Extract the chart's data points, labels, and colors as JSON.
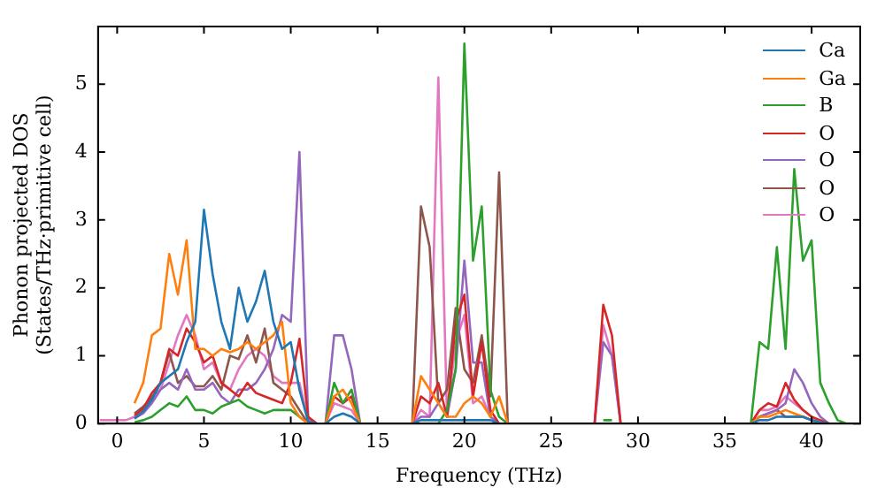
{
  "chart_data": {
    "type": "line",
    "xlabel": "Frequency (THz)",
    "ylabel": "Phonon projected DOS\n(States/THz·primitive cell)",
    "x": [
      -1,
      -0.5,
      0,
      0.5,
      1,
      1.5,
      2,
      2.5,
      3,
      3.5,
      4,
      4.5,
      5,
      5.5,
      6,
      6.5,
      7,
      7.5,
      8,
      8.5,
      9,
      9.5,
      10,
      10.5,
      11,
      11.5,
      12,
      12.5,
      13,
      13.5,
      14,
      14.5,
      15,
      15.5,
      16,
      16.5,
      17,
      17.5,
      18,
      18.5,
      19,
      19.5,
      20,
      20.5,
      21,
      21.5,
      22,
      22.5,
      23,
      23.5,
      24,
      24.5,
      25,
      25.5,
      26,
      26.5,
      27,
      27.5,
      28,
      28.5,
      29,
      29.5,
      30,
      30.5,
      31,
      31.5,
      32,
      32.5,
      33,
      33.5,
      34,
      34.5,
      35,
      35.5,
      36,
      36.5,
      37,
      37.5,
      38,
      38.5,
      39,
      39.5,
      40,
      40.5,
      41,
      41.5,
      42
    ],
    "xlim": [
      -1.1,
      42.8
    ],
    "xticks": [
      0,
      5,
      10,
      15,
      20,
      25,
      30,
      35,
      40
    ],
    "ylim": [
      0,
      5.85
    ],
    "yticks": [
      0,
      1,
      2,
      3,
      4,
      5
    ],
    "legend": "top right",
    "series": [
      {
        "name": "Ca",
        "color": "#1f77b4",
        "values": [
          null,
          null,
          null,
          null,
          0.07,
          0.18,
          0.35,
          0.6,
          0.7,
          0.8,
          1.2,
          1.5,
          3.15,
          2.2,
          1.5,
          1.1,
          2.0,
          1.5,
          1.8,
          2.25,
          1.5,
          1.1,
          1.2,
          0.5,
          0.03,
          0,
          0,
          0.1,
          0.15,
          0.1,
          0,
          null,
          null,
          null,
          null,
          null,
          0,
          0.05,
          0.05,
          0.05,
          0.05,
          0.05,
          0.05,
          0.05,
          0.05,
          0.05,
          0,
          null,
          null,
          null,
          null,
          null,
          null,
          null,
          null,
          null,
          null,
          null,
          null,
          null,
          null,
          null,
          null,
          null,
          null,
          null,
          null,
          null,
          null,
          null,
          null,
          null,
          null,
          null,
          null,
          0,
          0.05,
          0.05,
          0.1,
          0.1,
          0.1,
          0.1,
          0.05,
          0.02,
          0,
          null,
          null
        ]
      },
      {
        "name": "Ga",
        "color": "#ff7f0e",
        "values": [
          null,
          null,
          null,
          null,
          0.3,
          0.6,
          1.3,
          1.4,
          2.5,
          1.9,
          2.7,
          1.1,
          1.1,
          1.0,
          1.1,
          1.05,
          1.1,
          1.2,
          1.1,
          1.2,
          1.3,
          1.5,
          0.3,
          0.1,
          0,
          null,
          0,
          0.4,
          0.5,
          0.3,
          0,
          null,
          null,
          null,
          null,
          null,
          0,
          0.7,
          0.5,
          0.3,
          0.1,
          0.1,
          0.3,
          0.4,
          0.3,
          0.1,
          0.4,
          0,
          null,
          null,
          null,
          null,
          null,
          null,
          null,
          null,
          null,
          null,
          null,
          null,
          null,
          null,
          null,
          null,
          null,
          null,
          null,
          null,
          null,
          null,
          null,
          null,
          null,
          null,
          null,
          0,
          0.1,
          0.1,
          0.15,
          0.2,
          0.15,
          0.1,
          0.05,
          0,
          null,
          null,
          null
        ]
      },
      {
        "name": "B",
        "color": "#2ca02c",
        "values": [
          null,
          null,
          null,
          null,
          0.02,
          0.05,
          0.1,
          0.2,
          0.3,
          0.25,
          0.4,
          0.2,
          0.2,
          0.15,
          0.25,
          0.3,
          0.35,
          0.25,
          0.2,
          0.15,
          0.2,
          0.2,
          0.2,
          0.1,
          0,
          null,
          0,
          0.6,
          0.3,
          0.5,
          0,
          null,
          null,
          null,
          null,
          null,
          null,
          null,
          null,
          0,
          0.2,
          0.8,
          5.6,
          2.4,
          3.2,
          0.5,
          0.1,
          0,
          null,
          null,
          null,
          null,
          null,
          null,
          null,
          null,
          null,
          null,
          0.05,
          0.05,
          null,
          null,
          null,
          null,
          null,
          null,
          null,
          null,
          null,
          null,
          null,
          null,
          null,
          null,
          null,
          0,
          1.2,
          1.1,
          2.6,
          1.1,
          3.75,
          2.4,
          2.7,
          0.6,
          0.3,
          0.05,
          0
        ]
      },
      {
        "name": "O",
        "color": "#d62728",
        "values": [
          null,
          null,
          null,
          null,
          0.12,
          0.22,
          0.45,
          0.6,
          1.1,
          1.0,
          1.4,
          1.2,
          0.9,
          1.0,
          0.6,
          0.5,
          0.4,
          0.6,
          0.45,
          0.4,
          0.35,
          0.3,
          0.6,
          1.25,
          0.1,
          0,
          0,
          0.4,
          0.3,
          0.4,
          0,
          null,
          null,
          null,
          null,
          null,
          0,
          0.4,
          0.3,
          0.6,
          0.1,
          1.5,
          1.9,
          0.4,
          1.2,
          0.2,
          0,
          null,
          null,
          null,
          null,
          null,
          null,
          null,
          null,
          null,
          null,
          0,
          1.75,
          1.3,
          0,
          null,
          null,
          null,
          null,
          null,
          null,
          null,
          null,
          null,
          null,
          null,
          null,
          null,
          null,
          0,
          0.2,
          0.3,
          0.25,
          0.6,
          0.35,
          0.2,
          0.1,
          0.05,
          0,
          null,
          null
        ]
      },
      {
        "name": "O",
        "color": "#9467bd",
        "values": [
          null,
          null,
          null,
          null,
          0.08,
          0.15,
          0.3,
          0.5,
          0.6,
          0.5,
          0.8,
          0.5,
          0.5,
          0.6,
          0.4,
          0.3,
          0.5,
          0.5,
          0.6,
          0.8,
          1.1,
          1.6,
          1.5,
          4.0,
          0.08,
          0,
          0,
          1.3,
          1.3,
          0.8,
          0,
          null,
          null,
          null,
          null,
          null,
          0,
          0.1,
          0.1,
          0.3,
          0.1,
          0.8,
          2.4,
          0.9,
          0.9,
          0.1,
          0,
          null,
          null,
          null,
          null,
          null,
          null,
          null,
          null,
          null,
          null,
          0,
          1.2,
          1.0,
          0,
          null,
          null,
          null,
          null,
          null,
          null,
          null,
          null,
          null,
          null,
          null,
          null,
          null,
          null,
          0,
          0.1,
          0.15,
          0.2,
          0.3,
          0.8,
          0.6,
          0.3,
          0.1,
          0,
          null,
          null
        ]
      },
      {
        "name": "O",
        "color": "#8c564b",
        "values": [
          null,
          null,
          null,
          null,
          0.15,
          0.25,
          0.38,
          0.6,
          1.05,
          0.6,
          0.7,
          0.55,
          0.55,
          0.7,
          0.5,
          1.0,
          0.95,
          1.3,
          0.9,
          1.4,
          0.6,
          0.5,
          0.4,
          0.2,
          0,
          null,
          null,
          null,
          null,
          null,
          null,
          null,
          null,
          null,
          null,
          null,
          0,
          3.2,
          2.6,
          0.3,
          0.5,
          1.7,
          0.8,
          0.6,
          1.3,
          0.4,
          3.7,
          0,
          null,
          null,
          null,
          null,
          null,
          null,
          null,
          null,
          null,
          null,
          null,
          null,
          null,
          null,
          null,
          null,
          null,
          null,
          null,
          null,
          null,
          null,
          null,
          null,
          null,
          null,
          null,
          0,
          0.1,
          0.15,
          0.2,
          0.1,
          0.1,
          0.1,
          0.05,
          0,
          null,
          null,
          null
        ]
      },
      {
        "name": "O",
        "color": "#e377c2",
        "values": [
          0.05,
          0.05,
          0.05,
          0.05,
          0.1,
          0.2,
          0.4,
          0.5,
          0.9,
          1.3,
          1.6,
          1.3,
          0.8,
          0.9,
          0.6,
          0.5,
          0.8,
          1.0,
          1.1,
          1.0,
          0.7,
          0.6,
          0.6,
          0.6,
          0.05,
          0,
          0,
          0.3,
          0.25,
          0.2,
          0,
          null,
          null,
          null,
          null,
          null,
          0,
          0.2,
          0.1,
          5.1,
          0.1,
          1.2,
          1.6,
          0.3,
          0.4,
          0.1,
          0,
          null,
          null,
          null,
          null,
          null,
          null,
          null,
          null,
          null,
          null,
          0,
          1.45,
          1.0,
          0,
          null,
          null,
          null,
          null,
          null,
          null,
          null,
          null,
          null,
          null,
          null,
          null,
          null,
          null,
          0,
          0.2,
          0.2,
          0.25,
          0.4,
          0.3,
          0.2,
          0.1,
          0,
          null,
          null,
          null
        ]
      }
    ]
  }
}
